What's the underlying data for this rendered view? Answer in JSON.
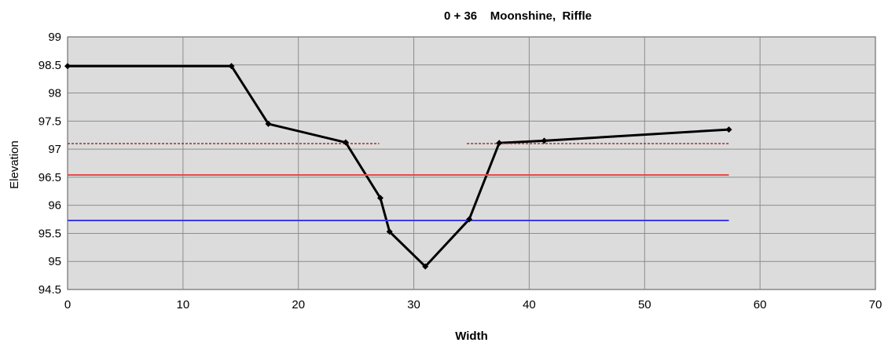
{
  "chart_data": {
    "type": "line",
    "title": "0 + 36    Moonshine,  Riffle",
    "xlabel": "Width",
    "ylabel": "Elevation",
    "xlim": [
      0,
      70
    ],
    "ylim": [
      94.5,
      99
    ],
    "x_ticks": [
      0,
      10,
      20,
      30,
      40,
      50,
      60,
      70
    ],
    "y_ticks": [
      94.5,
      95,
      95.5,
      96,
      96.5,
      97,
      97.5,
      98,
      98.5,
      99
    ],
    "x_tick_labels": [
      "0",
      "10",
      "20",
      "30",
      "40",
      "50",
      "60",
      "70"
    ],
    "y_tick_labels": [
      "94.5",
      "95",
      "95.5",
      "96",
      "96.5",
      "97",
      "97.5",
      "98",
      "98.5",
      "99"
    ],
    "grid": true,
    "plot_background": "#dcdcdc",
    "series": [
      {
        "style": "solid-black-with-markers",
        "color": "#000000",
        "x": [
          0,
          14.2,
          17.4,
          24.1,
          27.1,
          27.9,
          31.0,
          34.8,
          37.4,
          41.3,
          57.3
        ],
        "y": [
          98.48,
          98.48,
          97.45,
          97.12,
          96.13,
          95.53,
          94.91,
          95.75,
          97.11,
          97.15,
          97.35
        ]
      },
      {
        "style": "dashed",
        "color": "#a0302c",
        "segments": [
          {
            "x": [
              0,
              27.0
            ],
            "y": [
              97.1,
              97.1
            ]
          },
          {
            "x": [
              34.6,
              57.3
            ],
            "y": [
              97.1,
              97.1
            ]
          }
        ]
      },
      {
        "style": "solid",
        "color": "#e84a4a",
        "x": [
          0,
          57.3
        ],
        "y": [
          96.54,
          96.54
        ]
      },
      {
        "style": "solid",
        "color": "#3a3ae8",
        "x": [
          0,
          57.3
        ],
        "y": [
          95.73,
          95.73
        ]
      }
    ]
  }
}
